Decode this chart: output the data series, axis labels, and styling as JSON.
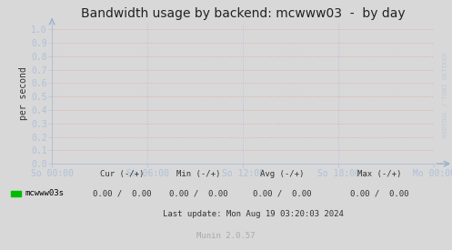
{
  "title": "Bandwidth usage by backend: mcwww03  -  by day",
  "ylabel": "per second",
  "background_color": "#d8d8d8",
  "plot_bg_color": "#d8d8d8",
  "grid_color_h": "#e8a0a0",
  "grid_color_v": "#b0c0d8",
  "border_color": "#b0c0d8",
  "yticks": [
    0.0,
    0.1,
    0.2,
    0.3,
    0.4,
    0.5,
    0.6,
    0.7,
    0.8,
    0.9,
    1.0
  ],
  "ylim": [
    0.0,
    1.05
  ],
  "xtick_labels": [
    "So 00:00",
    "So 06:00",
    "So 12:00",
    "So 18:00",
    "Mo 00:00"
  ],
  "xtick_positions": [
    0.0,
    0.25,
    0.5,
    0.75,
    1.0
  ],
  "legend_label": "mcwww03s",
  "legend_color": "#00bb00",
  "last_update": "Last update: Mon Aug 19 03:20:03 2024",
  "munin_version": "Munin 2.0.57",
  "watermark": "RRDTOOL / TOBI OETIKER",
  "title_fontsize": 10,
  "axis_label_fontsize": 7,
  "tick_fontsize": 7,
  "stats_fontsize": 6.5,
  "watermark_fontsize": 5,
  "arrow_color": "#9ab0cc"
}
